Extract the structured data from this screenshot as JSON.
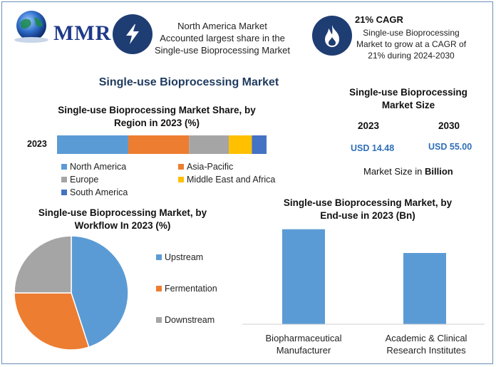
{
  "header": {
    "logo_text": "MMR",
    "box1_icon": "lightning-icon",
    "box1_text": [
      "North America Market",
      "Accounted largest share in the",
      "Single-use Bioprocessing Market"
    ],
    "box2_icon": "flame-icon",
    "box2_title": "21% CAGR",
    "box2_text": [
      "Single-use Bioprocessing",
      "Market to grow at a CAGR of",
      "21% during 2024-2030"
    ]
  },
  "main_title": "Single-use Bioprocessing Market",
  "market_size": {
    "title_line1": "Single-use Bioprocessing",
    "title_line2": "Market Size",
    "year1": "2023",
    "year2": "2030",
    "value1": "USD 14.48",
    "value2": "USD 55.00",
    "unit_prefix": "Market Size in ",
    "unit_bold": "Billion"
  },
  "colors": {
    "blue": "#5b9bd5",
    "orange": "#ed7d31",
    "gray": "#a5a5a5",
    "yellow": "#ffc000",
    "darkblue": "#4472c4",
    "icon_bg": "#1e3d73"
  },
  "chart_data": [
    {
      "type": "bar",
      "orientation": "horizontal-stacked",
      "title": "Single-use Bioprocessing Market Share, by Region in 2023 (%)",
      "title_line1": "Single-use Bioprocessing Market Share, by",
      "title_line2": "Region in 2023 (%)",
      "categories": [
        "2023"
      ],
      "series": [
        {
          "name": "North America",
          "values": [
            34
          ],
          "color": "#5b9bd5"
        },
        {
          "name": "Asia-Pacific",
          "values": [
            29
          ],
          "color": "#ed7d31"
        },
        {
          "name": "Europe",
          "values": [
            19
          ],
          "color": "#a5a5a5"
        },
        {
          "name": "Middle East and Africa",
          "values": [
            11
          ],
          "color": "#ffc000"
        },
        {
          "name": "South America",
          "values": [
            7
          ],
          "color": "#4472c4"
        }
      ],
      "legend": "bottom"
    },
    {
      "type": "pie",
      "title": "Single-use Bioprocessing Market, by Workflow In 2023 (%)",
      "title_line1": "Single-use Bioprocessing Market, by",
      "title_line2": "Workflow In 2023 (%)",
      "labels": [
        "Upstream",
        "Fermentation",
        "Downstream"
      ],
      "values": [
        45,
        30,
        25
      ],
      "colors": [
        "#5b9bd5",
        "#ed7d31",
        "#a5a5a5"
      ],
      "legend": "right"
    },
    {
      "type": "bar",
      "title": "Single-use Bioprocessing Market, by End-use in 2023 (Bn)",
      "title_line1": "Single-use Bioprocessing Market, by",
      "title_line2": "End-use in 2023 (Bn)",
      "categories": [
        "Biopharmaceutical Manufacturer",
        "Academic & Clinical Research Institutes"
      ],
      "category_lines": [
        [
          "Biopharmaceutical",
          "Manufacturer"
        ],
        [
          "Academic & Clinical",
          "Research Institutes"
        ]
      ],
      "values": [
        8.0,
        6.0
      ],
      "color": "#5b9bd5",
      "ylim": [
        0,
        9
      ]
    }
  ]
}
